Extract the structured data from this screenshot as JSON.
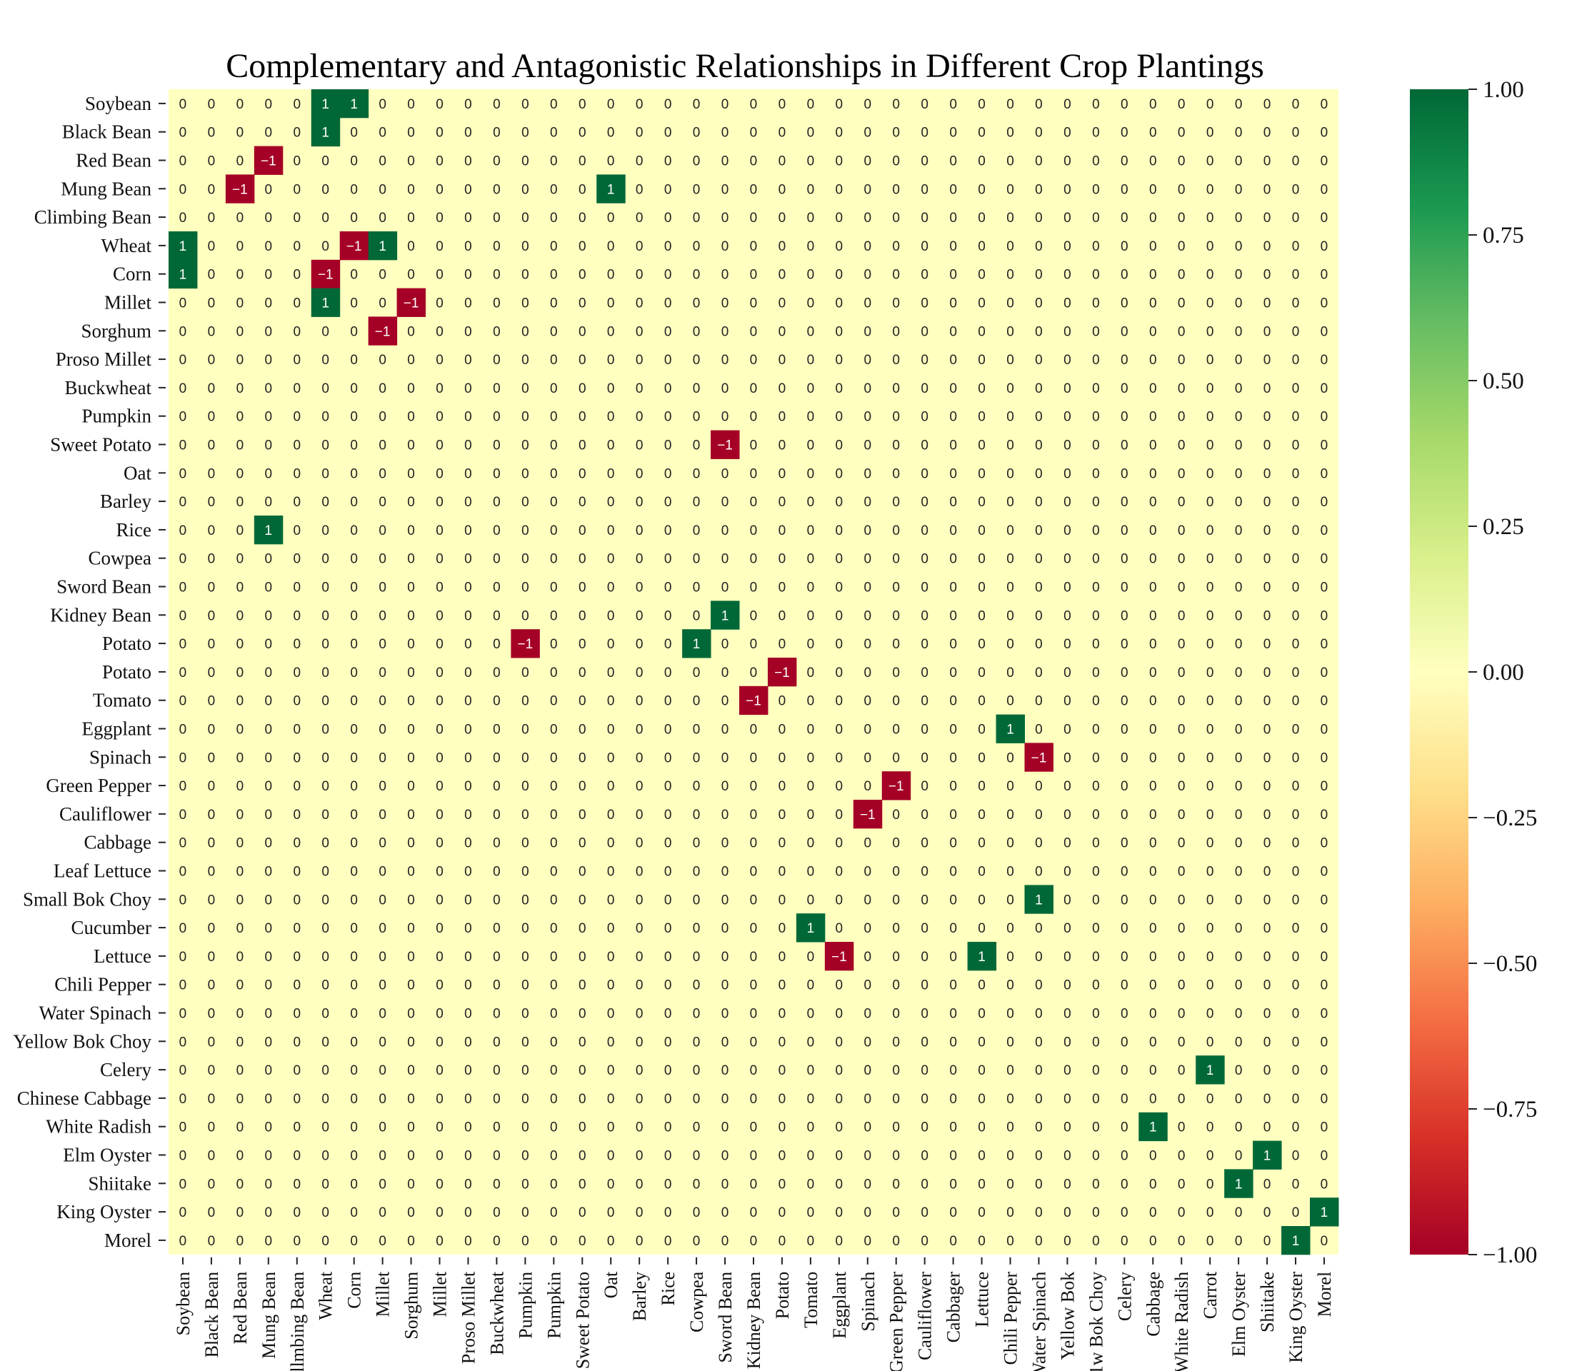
{
  "chart_data": {
    "type": "heatmap",
    "title": "Complementary and Antagonistic Relationships in Different Crop Plantings",
    "row_labels": [
      "Soybean",
      "Black Bean",
      "Red Bean",
      "Mung Bean",
      "Climbing Bean",
      "Wheat",
      "Corn",
      "Millet",
      "Sorghum",
      "Proso Millet",
      "Buckwheat",
      "Pumpkin",
      "Sweet Potato",
      "Oat",
      "Barley",
      "Rice",
      "Cowpea",
      "Sword Bean",
      "Kidney Bean",
      "Potato",
      "Potato",
      "Tomato",
      "Eggplant",
      "Spinach",
      "Green Pepper",
      "Cauliflower",
      "Cabbage",
      "Leaf Lettuce",
      "Small Bok Choy",
      "Cucumber",
      "Lettuce",
      "Chili Pepper",
      "Water Spinach",
      "Yellow Bok Choy",
      "Celery",
      "Chinese Cabbage",
      "White Radish",
      "Elm Oyster",
      "Shiitake",
      "King Oyster",
      "Morel"
    ],
    "col_labels": [
      "Soybean",
      "Black Bean",
      "Red Bean",
      "Mung Bean",
      "llmbing Bean",
      "Wheat",
      "Corn",
      "Millet",
      "Sorghum",
      "Millet",
      "Proso Millet",
      "Buckwheat",
      "Pumpkin",
      "Pumpkin",
      "Sweet Potato",
      "Oat",
      "Barley",
      "Rice",
      "Cowpea",
      "Sword Bean",
      "Kidney Bean",
      "Potato",
      "Tomato",
      "Eggplant",
      "Spinach",
      "Green Pepper",
      "Cauliflower",
      "Cabbager",
      "Lettuce",
      "Chili Pepper",
      "Water Spinach",
      "Yellow Bok",
      "1w Bok Choy",
      "Celery",
      "Cabbage",
      "White Radish",
      "Carrot",
      "Elm Oyster",
      "Shiitake",
      "King Oyster",
      "Morel"
    ],
    "nonzero": [
      {
        "r": 0,
        "c": 5,
        "v": 1
      },
      {
        "r": 0,
        "c": 6,
        "v": 1
      },
      {
        "r": 1,
        "c": 5,
        "v": 1
      },
      {
        "r": 2,
        "c": 3,
        "v": -1
      },
      {
        "r": 3,
        "c": 2,
        "v": -1
      },
      {
        "r": 3,
        "c": 15,
        "v": 1
      },
      {
        "r": 5,
        "c": 0,
        "v": 1
      },
      {
        "r": 5,
        "c": 6,
        "v": -1
      },
      {
        "r": 5,
        "c": 7,
        "v": 1
      },
      {
        "r": 6,
        "c": 0,
        "v": 1
      },
      {
        "r": 6,
        "c": 5,
        "v": -1
      },
      {
        "r": 7,
        "c": 5,
        "v": 1
      },
      {
        "r": 7,
        "c": 8,
        "v": -1
      },
      {
        "r": 8,
        "c": 7,
        "v": -1
      },
      {
        "r": 12,
        "c": 19,
        "v": -1
      },
      {
        "r": 15,
        "c": 3,
        "v": 1
      },
      {
        "r": 18,
        "c": 19,
        "v": 1
      },
      {
        "r": 19,
        "c": 12,
        "v": -1
      },
      {
        "r": 19,
        "c": 18,
        "v": 1
      },
      {
        "r": 20,
        "c": 21,
        "v": -1
      },
      {
        "r": 21,
        "c": 20,
        "v": -1
      },
      {
        "r": 22,
        "c": 29,
        "v": 1
      },
      {
        "r": 23,
        "c": 30,
        "v": -1
      },
      {
        "r": 24,
        "c": 25,
        "v": -1
      },
      {
        "r": 25,
        "c": 24,
        "v": -1
      },
      {
        "r": 28,
        "c": 30,
        "v": 1
      },
      {
        "r": 29,
        "c": 22,
        "v": 1
      },
      {
        "r": 30,
        "c": 23,
        "v": -1
      },
      {
        "r": 30,
        "c": 28,
        "v": 1
      },
      {
        "r": 34,
        "c": 36,
        "v": 1
      },
      {
        "r": 36,
        "c": 34,
        "v": 1
      },
      {
        "r": 37,
        "c": 38,
        "v": 1
      },
      {
        "r": 38,
        "c": 37,
        "v": 1
      },
      {
        "r": 39,
        "c": 40,
        "v": 1
      },
      {
        "r": 40,
        "c": 39,
        "v": 1
      }
    ],
    "vmin": -1,
    "vmax": 1,
    "colormap": "RdYlGn",
    "colorbar_ticks": [
      "1.00",
      "0.75",
      "0.50",
      "0.25",
      "0.00",
      "−0.25",
      "−0.50",
      "−0.75",
      "−1.00"
    ],
    "colors": {
      "negative": "#a50026",
      "zero": "#ffffbf",
      "positive": "#006837"
    }
  }
}
